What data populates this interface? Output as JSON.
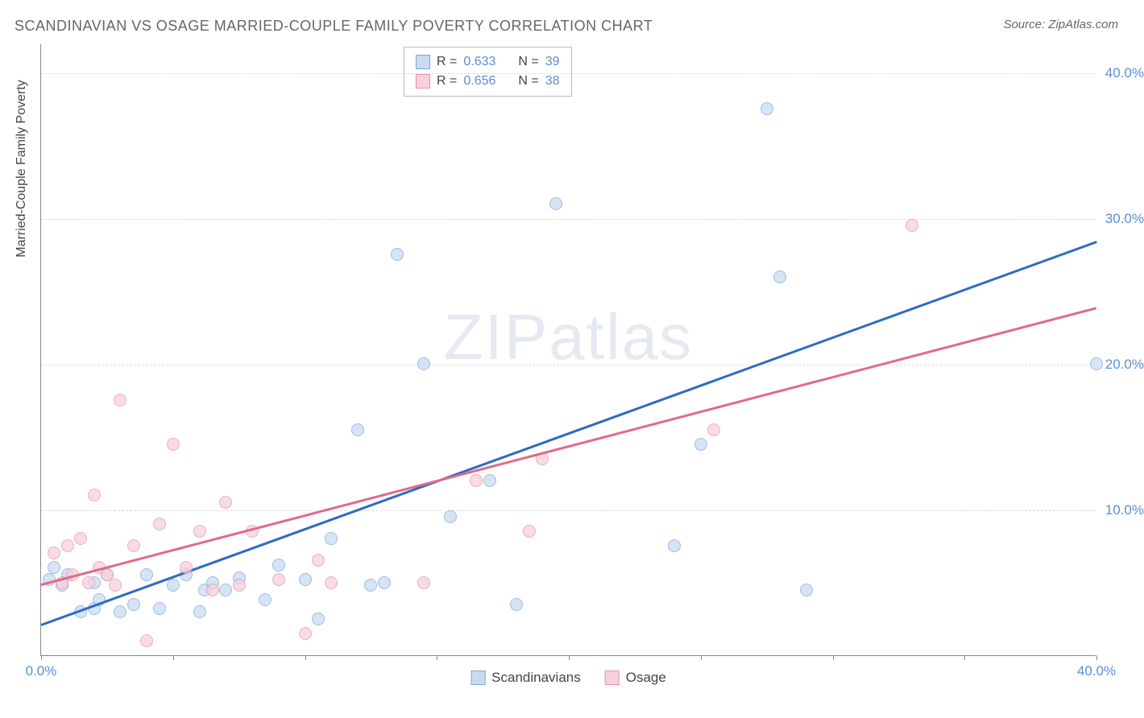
{
  "title": "SCANDINAVIAN VS OSAGE MARRIED-COUPLE FAMILY POVERTY CORRELATION CHART",
  "source": "Source: ZipAtlas.com",
  "ylabel": "Married-Couple Family Poverty",
  "watermark_1": "ZIP",
  "watermark_2": "atlas",
  "chart": {
    "type": "scatter",
    "xlim": [
      0,
      40
    ],
    "ylim": [
      0,
      42
    ],
    "xtick_start_label": "0.0%",
    "xtick_end_label": "40.0%",
    "xtick_positions": [
      0,
      5,
      10,
      15,
      20,
      25,
      30,
      35,
      40
    ],
    "ytick_positions": [
      10,
      20,
      30,
      40
    ],
    "ytick_labels": [
      "10.0%",
      "20.0%",
      "30.0%",
      "40.0%"
    ],
    "grid_color": "#dddddd",
    "background_color": "#ffffff",
    "axis_color": "#888888",
    "tick_label_color": "#5b8dd6",
    "marker_size": 16,
    "series": [
      {
        "name": "Scandinavians",
        "fill": "#c9dbf2",
        "stroke": "#7ea6d9",
        "line_color": "#2e6bc0",
        "r_value": "0.633",
        "n_value": "39",
        "trendline": {
          "x1": 0,
          "y1": 2.2,
          "x2": 40,
          "y2": 28.5
        },
        "points": [
          [
            0.3,
            5.2
          ],
          [
            0.5,
            6.0
          ],
          [
            0.8,
            4.8
          ],
          [
            1.0,
            5.5
          ],
          [
            1.5,
            3.0
          ],
          [
            2.0,
            3.2
          ],
          [
            2.0,
            5.0
          ],
          [
            2.2,
            3.8
          ],
          [
            2.5,
            5.5
          ],
          [
            3.0,
            3.0
          ],
          [
            3.5,
            3.5
          ],
          [
            4.0,
            5.5
          ],
          [
            4.5,
            3.2
          ],
          [
            5.0,
            4.8
          ],
          [
            5.5,
            5.5
          ],
          [
            6.0,
            3.0
          ],
          [
            6.2,
            4.5
          ],
          [
            6.5,
            5.0
          ],
          [
            7.0,
            4.5
          ],
          [
            7.5,
            5.3
          ],
          [
            8.5,
            3.8
          ],
          [
            9.0,
            6.2
          ],
          [
            10.0,
            5.2
          ],
          [
            10.5,
            2.5
          ],
          [
            11.0,
            8.0
          ],
          [
            12.0,
            15.5
          ],
          [
            12.5,
            4.8
          ],
          [
            13.0,
            5.0
          ],
          [
            13.5,
            27.5
          ],
          [
            14.5,
            20.0
          ],
          [
            15.5,
            9.5
          ],
          [
            17.0,
            12.0
          ],
          [
            18.0,
            3.5
          ],
          [
            19.5,
            31.0
          ],
          [
            24.0,
            7.5
          ],
          [
            25.0,
            14.5
          ],
          [
            27.5,
            37.5
          ],
          [
            28.0,
            26.0
          ],
          [
            29.0,
            4.5
          ],
          [
            40.0,
            20.0
          ]
        ]
      },
      {
        "name": "Osage",
        "fill": "#f6d0da",
        "stroke": "#e693ab",
        "line_color": "#e16a8b",
        "r_value": "0.656",
        "n_value": "38",
        "trendline": {
          "x1": 0,
          "y1": 5.0,
          "x2": 40,
          "y2": 24.0
        },
        "points": [
          [
            0.5,
            7.0
          ],
          [
            0.8,
            5.0
          ],
          [
            1.0,
            7.5
          ],
          [
            1.2,
            5.5
          ],
          [
            1.5,
            8.0
          ],
          [
            1.8,
            5.0
          ],
          [
            2.0,
            11.0
          ],
          [
            2.2,
            6.0
          ],
          [
            2.5,
            5.5
          ],
          [
            2.8,
            4.8
          ],
          [
            3.0,
            17.5
          ],
          [
            3.5,
            7.5
          ],
          [
            4.0,
            1.0
          ],
          [
            4.5,
            9.0
          ],
          [
            5.0,
            14.5
          ],
          [
            5.5,
            6.0
          ],
          [
            6.0,
            8.5
          ],
          [
            6.5,
            4.5
          ],
          [
            7.0,
            10.5
          ],
          [
            7.5,
            4.8
          ],
          [
            8.0,
            8.5
          ],
          [
            9.0,
            5.2
          ],
          [
            10.0,
            1.5
          ],
          [
            10.5,
            6.5
          ],
          [
            11.0,
            5.0
          ],
          [
            14.5,
            5.0
          ],
          [
            16.5,
            12.0
          ],
          [
            18.5,
            8.5
          ],
          [
            19.0,
            13.5
          ],
          [
            25.5,
            15.5
          ],
          [
            33.0,
            29.5
          ]
        ]
      }
    ]
  },
  "legend_top": {
    "r_label": "R =",
    "n_label": "N ="
  },
  "legend_bottom": {
    "series1": "Scandinavians",
    "series2": "Osage"
  }
}
